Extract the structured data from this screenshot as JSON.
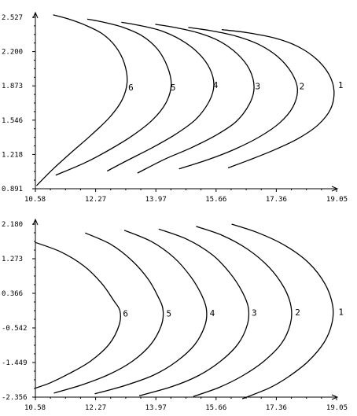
{
  "chart_data": [
    {
      "type": "line",
      "title": "",
      "xlabel": "",
      "ylabel": "",
      "xlim": [
        10.58,
        19.05
      ],
      "ylim": [
        0.891,
        2.527
      ],
      "x_ticks": [
        "10.58",
        "12.27",
        "13.97",
        "15.66",
        "17.36",
        "19.05"
      ],
      "y_ticks": [
        "0.891",
        "1.218",
        "1.546",
        "1.873",
        "2.200",
        "2.527"
      ],
      "series": [
        {
          "name": "1",
          "x": [
            15.82,
            16.55,
            17.3,
            17.95,
            18.48,
            18.84,
            18.98,
            18.88,
            18.53,
            17.97,
            17.29,
            16.55,
            16.0
          ],
          "y": [
            2.41,
            2.38,
            2.33,
            2.25,
            2.13,
            1.98,
            1.82,
            1.65,
            1.5,
            1.37,
            1.26,
            1.16,
            1.09
          ]
        },
        {
          "name": "2",
          "x": [
            14.88,
            15.5,
            16.2,
            16.85,
            17.4,
            17.78,
            17.95,
            17.82,
            17.45,
            16.9,
            16.2,
            15.45,
            14.62
          ],
          "y": [
            2.43,
            2.4,
            2.35,
            2.27,
            2.15,
            2.0,
            1.84,
            1.67,
            1.52,
            1.39,
            1.27,
            1.17,
            1.08
          ]
        },
        {
          "name": "3",
          "x": [
            13.95,
            14.5,
            15.15,
            15.75,
            16.25,
            16.6,
            16.73,
            16.6,
            16.22,
            15.65,
            14.95,
            14.2,
            13.45
          ],
          "y": [
            2.46,
            2.43,
            2.38,
            2.3,
            2.18,
            2.03,
            1.86,
            1.7,
            1.53,
            1.4,
            1.28,
            1.17,
            1.04
          ]
        },
        {
          "name": "4",
          "x": [
            13.0,
            13.5,
            14.1,
            14.68,
            15.15,
            15.48,
            15.6,
            15.46,
            15.08,
            14.52,
            13.85,
            13.1,
            12.6
          ],
          "y": [
            2.48,
            2.45,
            2.4,
            2.31,
            2.19,
            2.04,
            1.88,
            1.72,
            1.55,
            1.41,
            1.28,
            1.15,
            1.06
          ]
        },
        {
          "name": "5",
          "x": [
            12.04,
            12.5,
            13.05,
            13.58,
            14.02,
            14.3,
            14.4,
            14.25,
            13.88,
            13.32,
            12.7,
            11.98,
            11.15
          ],
          "y": [
            2.51,
            2.48,
            2.43,
            2.35,
            2.22,
            2.05,
            1.88,
            1.71,
            1.55,
            1.4,
            1.27,
            1.14,
            1.02
          ]
        },
        {
          "name": "6",
          "x": [
            11.08,
            11.52,
            12.0,
            12.46,
            12.83,
            13.08,
            13.16,
            13.02,
            12.66,
            12.14,
            11.6,
            11.08,
            10.61
          ],
          "y": [
            2.55,
            2.51,
            2.45,
            2.37,
            2.25,
            2.09,
            1.91,
            1.74,
            1.57,
            1.4,
            1.24,
            1.08,
            0.92
          ]
        }
      ],
      "labels": [
        {
          "text": "1",
          "x": 19.07,
          "y": 1.88
        },
        {
          "text": "2",
          "x": 17.98,
          "y": 1.87
        },
        {
          "text": "3",
          "x": 16.74,
          "y": 1.87
        },
        {
          "text": "4",
          "x": 15.55,
          "y": 1.88
        },
        {
          "text": "5",
          "x": 14.36,
          "y": 1.86
        },
        {
          "text": "6",
          "x": 13.17,
          "y": 1.86
        }
      ]
    },
    {
      "type": "line",
      "title": "",
      "xlabel": "",
      "ylabel": "",
      "xlim": [
        10.58,
        19.05
      ],
      "ylim": [
        -2.356,
        2.18
      ],
      "x_ticks": [
        "10.58",
        "12.27",
        "13.97",
        "15.66",
        "17.36",
        "19.05"
      ],
      "y_ticks": [
        "-2.356",
        "-1.449",
        "-0.542",
        "0.366",
        "1.273",
        "2.180"
      ],
      "series": [
        {
          "name": "1",
          "x": [
            16.1,
            16.85,
            17.6,
            18.25,
            18.72,
            18.94,
            18.92,
            18.7,
            18.25,
            17.7,
            17.15,
            16.4
          ],
          "y": [
            2.18,
            1.95,
            1.62,
            1.18,
            0.62,
            0.05,
            -0.42,
            -0.92,
            -1.42,
            -1.82,
            -2.12,
            -2.4
          ]
        },
        {
          "name": "2",
          "x": [
            15.1,
            15.85,
            16.55,
            17.15,
            17.57,
            17.77,
            17.75,
            17.5,
            17.0,
            16.4,
            15.75,
            15.02
          ],
          "y": [
            2.12,
            1.88,
            1.52,
            1.05,
            0.52,
            0.02,
            -0.44,
            -0.95,
            -1.42,
            -1.8,
            -2.1,
            -2.34
          ]
        },
        {
          "name": "3",
          "x": [
            14.05,
            14.85,
            15.55,
            16.05,
            16.4,
            16.57,
            16.54,
            16.28,
            15.78,
            15.15,
            14.42,
            13.5
          ],
          "y": [
            2.05,
            1.78,
            1.38,
            0.9,
            0.4,
            -0.02,
            -0.46,
            -0.96,
            -1.42,
            -1.8,
            -2.08,
            -2.32
          ]
        },
        {
          "name": "4",
          "x": [
            13.08,
            13.85,
            14.48,
            14.95,
            15.25,
            15.39,
            15.35,
            15.06,
            14.55,
            13.9,
            13.1,
            12.25
          ],
          "y": [
            2.02,
            1.72,
            1.3,
            0.8,
            0.33,
            -0.05,
            -0.47,
            -0.98,
            -1.42,
            -1.78,
            -2.05,
            -2.27
          ]
        },
        {
          "name": "5",
          "x": [
            11.98,
            12.7,
            13.3,
            13.75,
            14.03,
            14.17,
            14.12,
            13.82,
            13.3,
            12.65,
            11.9,
            11.1
          ],
          "y": [
            1.95,
            1.65,
            1.22,
            0.74,
            0.28,
            -0.07,
            -0.48,
            -0.98,
            -1.42,
            -1.76,
            -2.03,
            -2.25
          ]
        },
        {
          "name": "6",
          "x": [
            10.58,
            11.3,
            11.95,
            12.45,
            12.78,
            12.96,
            12.93,
            12.66,
            12.15,
            11.55,
            11.0,
            10.58
          ],
          "y": [
            1.7,
            1.45,
            1.08,
            0.62,
            0.18,
            -0.1,
            -0.48,
            -0.96,
            -1.4,
            -1.73,
            -1.98,
            -2.12
          ]
        }
      ],
      "labels": [
        {
          "text": "1",
          "x": 19.08,
          "y": -0.12
        },
        {
          "text": "2",
          "x": 17.86,
          "y": -0.13
        },
        {
          "text": "3",
          "x": 16.64,
          "y": -0.14
        },
        {
          "text": "4",
          "x": 15.46,
          "y": -0.15
        },
        {
          "text": "5",
          "x": 14.24,
          "y": -0.16
        },
        {
          "text": "6",
          "x": 13.02,
          "y": -0.16
        }
      ]
    }
  ]
}
